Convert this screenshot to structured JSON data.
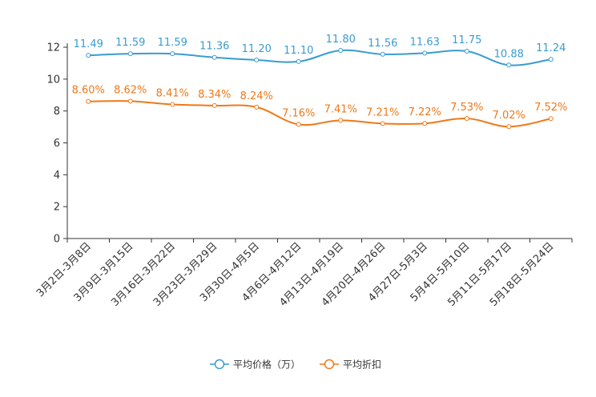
{
  "chart_data": {
    "type": "line",
    "categories": [
      "3月2日-3月8日",
      "3月9日-3月15日",
      "3月16日-3月22日",
      "3月23日-3月29日",
      "3月30日-4月5日",
      "4月6日-4月12日",
      "4月13日-4月19日",
      "4月20日-4月26日",
      "4月27日-5月3日",
      "5月4日-5月10日",
      "5月11日-5月17日",
      "5月18日-5月24日"
    ],
    "yticks": [
      0,
      2,
      4,
      6,
      8,
      10,
      12
    ],
    "ylim": [
      0,
      12
    ],
    "series": [
      {
        "name": "平均价格（万）",
        "color": "#3a9bd0",
        "values": [
          11.49,
          11.59,
          11.59,
          11.36,
          11.2,
          11.1,
          11.8,
          11.56,
          11.63,
          11.75,
          10.88,
          11.24
        ],
        "labels": [
          "11.49",
          "11.59",
          "11.59",
          "11.36",
          "11.20",
          "11.10",
          "11.80",
          "11.56",
          "11.63",
          "11.75",
          "10.88",
          "11.24"
        ]
      },
      {
        "name": "平均折扣",
        "color": "#f07818",
        "values": [
          8.6,
          8.62,
          8.41,
          8.34,
          8.24,
          7.16,
          7.41,
          7.21,
          7.22,
          7.53,
          7.02,
          7.52
        ],
        "labels": [
          "8.60%",
          "8.62%",
          "8.41%",
          "8.34%",
          "8.24%",
          "7.16%",
          "7.41%",
          "7.21%",
          "7.22%",
          "7.53%",
          "7.02%",
          "7.52%"
        ]
      }
    ],
    "legend": "bottom-center",
    "grid": false
  }
}
